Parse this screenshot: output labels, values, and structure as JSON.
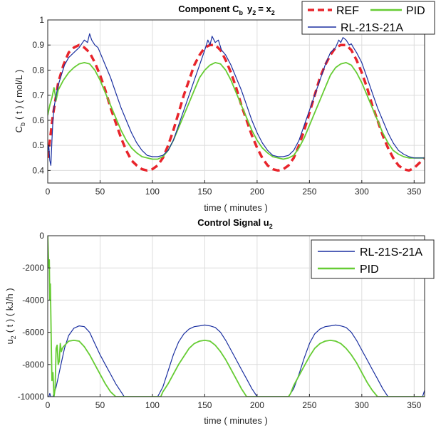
{
  "colors": {
    "ref": "#e8242b",
    "pid": "#66cc33",
    "rl": "#1a2fa0",
    "axis": "#262626",
    "grid": "#dcdcdc"
  },
  "chart_data": [
    {
      "type": "line",
      "title_main": "Component C",
      "title_sub1": "b",
      "title_mid": "y",
      "title_sub2": "2",
      "title_eq": "= x",
      "title_sub3": "2",
      "xlabel": "time ( minutes )",
      "ylabel_pre": "C",
      "ylabel_sub": "b",
      "ylabel_post": "( t ) ( mol/L )",
      "xlim": [
        0,
        360
      ],
      "ylim": [
        0.35,
        1.0
      ],
      "xticks": [
        "0",
        "50",
        "100",
        "150",
        "200",
        "250",
        "300",
        "350"
      ],
      "yticks": [
        "0.4",
        "0.5",
        "0.6",
        "0.7",
        "0.8",
        "0.9",
        "1"
      ],
      "legend": [
        "REF",
        "PID",
        "RL-21S-21A"
      ],
      "legend_position": "top-right",
      "series": [
        {
          "name": "REF",
          "style": "dashed",
          "x": [
            0,
            5,
            10,
            15,
            20,
            25,
            30,
            35,
            40,
            45,
            50,
            55,
            60,
            65,
            70,
            75,
            80,
            85,
            90,
            95,
            100,
            105,
            110,
            115,
            120,
            125,
            130,
            135,
            140,
            145,
            150,
            155,
            160,
            165,
            170,
            175,
            180,
            185,
            190,
            195,
            200,
            205,
            210,
            215,
            220,
            225,
            230,
            235,
            240,
            245,
            250,
            255,
            260,
            265,
            270,
            275,
            280,
            285,
            290,
            295,
            300,
            305,
            310,
            315,
            320,
            325,
            330,
            335,
            340,
            345,
            350,
            355,
            360
          ],
          "y": [
            0.45,
            0.62,
            0.75,
            0.82,
            0.87,
            0.89,
            0.9,
            0.89,
            0.87,
            0.83,
            0.78,
            0.72,
            0.65,
            0.59,
            0.53,
            0.48,
            0.44,
            0.42,
            0.405,
            0.4,
            0.405,
            0.42,
            0.45,
            0.5,
            0.56,
            0.63,
            0.7,
            0.76,
            0.82,
            0.86,
            0.89,
            0.9,
            0.9,
            0.88,
            0.84,
            0.79,
            0.73,
            0.66,
            0.6,
            0.54,
            0.49,
            0.45,
            0.42,
            0.405,
            0.4,
            0.405,
            0.42,
            0.45,
            0.5,
            0.56,
            0.63,
            0.7,
            0.77,
            0.82,
            0.86,
            0.89,
            0.9,
            0.9,
            0.88,
            0.84,
            0.79,
            0.73,
            0.66,
            0.6,
            0.54,
            0.49,
            0.45,
            0.42,
            0.405,
            0.4,
            0.41,
            0.43,
            0.45
          ]
        },
        {
          "name": "PID",
          "style": "solid",
          "x": [
            0,
            2,
            4,
            6,
            8,
            10,
            15,
            20,
            25,
            30,
            35,
            40,
            45,
            50,
            55,
            60,
            65,
            70,
            75,
            80,
            85,
            90,
            95,
            100,
            105,
            110,
            115,
            120,
            125,
            130,
            135,
            140,
            145,
            150,
            155,
            160,
            165,
            170,
            175,
            180,
            185,
            190,
            195,
            200,
            205,
            210,
            215,
            220,
            225,
            230,
            235,
            240,
            245,
            250,
            255,
            260,
            265,
            270,
            275,
            280,
            285,
            290,
            295,
            300,
            305,
            310,
            315,
            320,
            325,
            330,
            335,
            340,
            345,
            350,
            355,
            360
          ],
          "y": [
            0.62,
            0.66,
            0.69,
            0.73,
            0.68,
            0.72,
            0.76,
            0.79,
            0.81,
            0.825,
            0.83,
            0.825,
            0.8,
            0.76,
            0.71,
            0.66,
            0.61,
            0.56,
            0.52,
            0.49,
            0.47,
            0.455,
            0.45,
            0.445,
            0.445,
            0.455,
            0.48,
            0.52,
            0.57,
            0.62,
            0.67,
            0.72,
            0.77,
            0.8,
            0.82,
            0.83,
            0.825,
            0.8,
            0.76,
            0.71,
            0.66,
            0.61,
            0.56,
            0.52,
            0.49,
            0.47,
            0.455,
            0.45,
            0.445,
            0.45,
            0.46,
            0.49,
            0.53,
            0.58,
            0.63,
            0.68,
            0.73,
            0.78,
            0.81,
            0.825,
            0.83,
            0.82,
            0.79,
            0.75,
            0.7,
            0.65,
            0.6,
            0.55,
            0.51,
            0.48,
            0.465,
            0.455,
            0.45,
            0.45,
            0.45,
            0.45
          ]
        },
        {
          "name": "RL-21S-21A",
          "style": "solid",
          "x": [
            0,
            1,
            2,
            3,
            4,
            5,
            6,
            8,
            10,
            13,
            16,
            20,
            25,
            30,
            35,
            38,
            40,
            42,
            45,
            48,
            50,
            55,
            60,
            65,
            70,
            75,
            80,
            85,
            90,
            95,
            100,
            105,
            110,
            115,
            120,
            125,
            130,
            135,
            140,
            145,
            150,
            153,
            155,
            157,
            160,
            163,
            166,
            170,
            175,
            180,
            185,
            190,
            195,
            200,
            205,
            210,
            215,
            220,
            225,
            230,
            235,
            240,
            245,
            250,
            255,
            260,
            265,
            270,
            275,
            278,
            280,
            282,
            285,
            288,
            290,
            292,
            295,
            300,
            305,
            310,
            315,
            320,
            325,
            330,
            335,
            340,
            345,
            350,
            355,
            360
          ],
          "y": [
            0.47,
            0.5,
            0.44,
            0.42,
            0.52,
            0.6,
            0.65,
            0.7,
            0.74,
            0.78,
            0.82,
            0.85,
            0.87,
            0.89,
            0.92,
            0.91,
            0.945,
            0.92,
            0.9,
            0.89,
            0.87,
            0.82,
            0.77,
            0.71,
            0.65,
            0.6,
            0.55,
            0.51,
            0.48,
            0.46,
            0.455,
            0.455,
            0.46,
            0.48,
            0.52,
            0.58,
            0.64,
            0.7,
            0.76,
            0.82,
            0.88,
            0.92,
            0.9,
            0.935,
            0.91,
            0.92,
            0.88,
            0.86,
            0.82,
            0.77,
            0.72,
            0.66,
            0.6,
            0.55,
            0.51,
            0.48,
            0.46,
            0.455,
            0.455,
            0.46,
            0.48,
            0.52,
            0.58,
            0.64,
            0.7,
            0.76,
            0.82,
            0.87,
            0.89,
            0.92,
            0.91,
            0.93,
            0.92,
            0.9,
            0.905,
            0.89,
            0.87,
            0.83,
            0.77,
            0.71,
            0.65,
            0.6,
            0.55,
            0.51,
            0.48,
            0.465,
            0.455,
            0.45,
            0.45,
            0.45
          ]
        }
      ]
    },
    {
      "type": "line",
      "title_main": "Control Signal u",
      "title_sub1": "2",
      "xlabel": "time ( minutes )",
      "ylabel_pre": "u",
      "ylabel_sub": "2",
      "ylabel_post": "( t )  ( kJ/h )",
      "xlim": [
        0,
        360
      ],
      "ylim": [
        -10000,
        0
      ],
      "xticks": [
        "0",
        "50",
        "100",
        "150",
        "200",
        "250",
        "300",
        "350"
      ],
      "yticks": [
        "0",
        "-2000",
        "-4000",
        "-6000",
        "-8000",
        "-10000"
      ],
      "legend": [
        "RL-21S-21A",
        "PID"
      ],
      "legend_position": "top-right",
      "series": [
        {
          "name": "RL-21S-21A",
          "style": "solid",
          "x": [
            0,
            1,
            2,
            3,
            4,
            5,
            8,
            12,
            16,
            20,
            25,
            30,
            35,
            40,
            45,
            50,
            55,
            60,
            65,
            70,
            73,
            75,
            105,
            110,
            115,
            120,
            125,
            130,
            135,
            140,
            145,
            150,
            155,
            160,
            165,
            170,
            175,
            180,
            185,
            190,
            195,
            200,
            202,
            230,
            235,
            240,
            245,
            250,
            255,
            260,
            265,
            270,
            275,
            280,
            285,
            290,
            295,
            300,
            305,
            310,
            315,
            320,
            325,
            327,
            358,
            360
          ],
          "y": [
            -10000,
            -10000,
            -9800,
            -10000,
            -10000,
            -10000,
            -9400,
            -8200,
            -7000,
            -6200,
            -5750,
            -5600,
            -5650,
            -6000,
            -6700,
            -7400,
            -8000,
            -8600,
            -9200,
            -9700,
            -10000,
            -10000,
            -10000,
            -9400,
            -8400,
            -7400,
            -6600,
            -6100,
            -5800,
            -5650,
            -5600,
            -5550,
            -5600,
            -5700,
            -6000,
            -6500,
            -7100,
            -7700,
            -8300,
            -8900,
            -9500,
            -10000,
            -10000,
            -10000,
            -9500,
            -8600,
            -7600,
            -6700,
            -6100,
            -5800,
            -5650,
            -5600,
            -5550,
            -5600,
            -5700,
            -6000,
            -6500,
            -7100,
            -7700,
            -8300,
            -8900,
            -9500,
            -10000,
            -10000,
            -10000,
            -9600
          ]
        },
        {
          "name": "PID",
          "style": "solid",
          "x": [
            0,
            0.5,
            1,
            1.5,
            2,
            2.5,
            3,
            3.5,
            4,
            5,
            6,
            7,
            8,
            9,
            10,
            11,
            12,
            13,
            14,
            15,
            20,
            25,
            30,
            35,
            40,
            45,
            50,
            55,
            60,
            65,
            70,
            75,
            80,
            85,
            90,
            95,
            100,
            105,
            108,
            110,
            115,
            120,
            125,
            130,
            135,
            140,
            145,
            150,
            155,
            160,
            165,
            170,
            175,
            180,
            185,
            190,
            192,
            230,
            232,
            235,
            240,
            245,
            250,
            255,
            260,
            265,
            270,
            275,
            280,
            285,
            290,
            295,
            300,
            305,
            310,
            315,
            320,
            322,
            360
          ],
          "y": [
            0,
            -1000,
            -2000,
            -1500,
            -4000,
            -3000,
            -5000,
            -7000,
            -9000,
            -8500,
            -10000,
            -9500,
            -7000,
            -6800,
            -8000,
            -7800,
            -6700,
            -7200,
            -7000,
            -6900,
            -6550,
            -6500,
            -6550,
            -6900,
            -7400,
            -8000,
            -8600,
            -9200,
            -9700,
            -10000,
            -10000,
            -10000,
            -10000,
            -10000,
            -10000,
            -10000,
            -10000,
            -10000,
            -10000,
            -9700,
            -9200,
            -8600,
            -8000,
            -7500,
            -7000,
            -6700,
            -6550,
            -6500,
            -6550,
            -6800,
            -7200,
            -7700,
            -8300,
            -8900,
            -9500,
            -10000,
            -10000,
            -10000,
            -9800,
            -9300,
            -8700,
            -8100,
            -7500,
            -7000,
            -6700,
            -6550,
            -6500,
            -6550,
            -6700,
            -7000,
            -7400,
            -7900,
            -8500,
            -9100,
            -9600,
            -10000,
            -10000,
            -10000,
            -10000
          ]
        }
      ]
    }
  ]
}
